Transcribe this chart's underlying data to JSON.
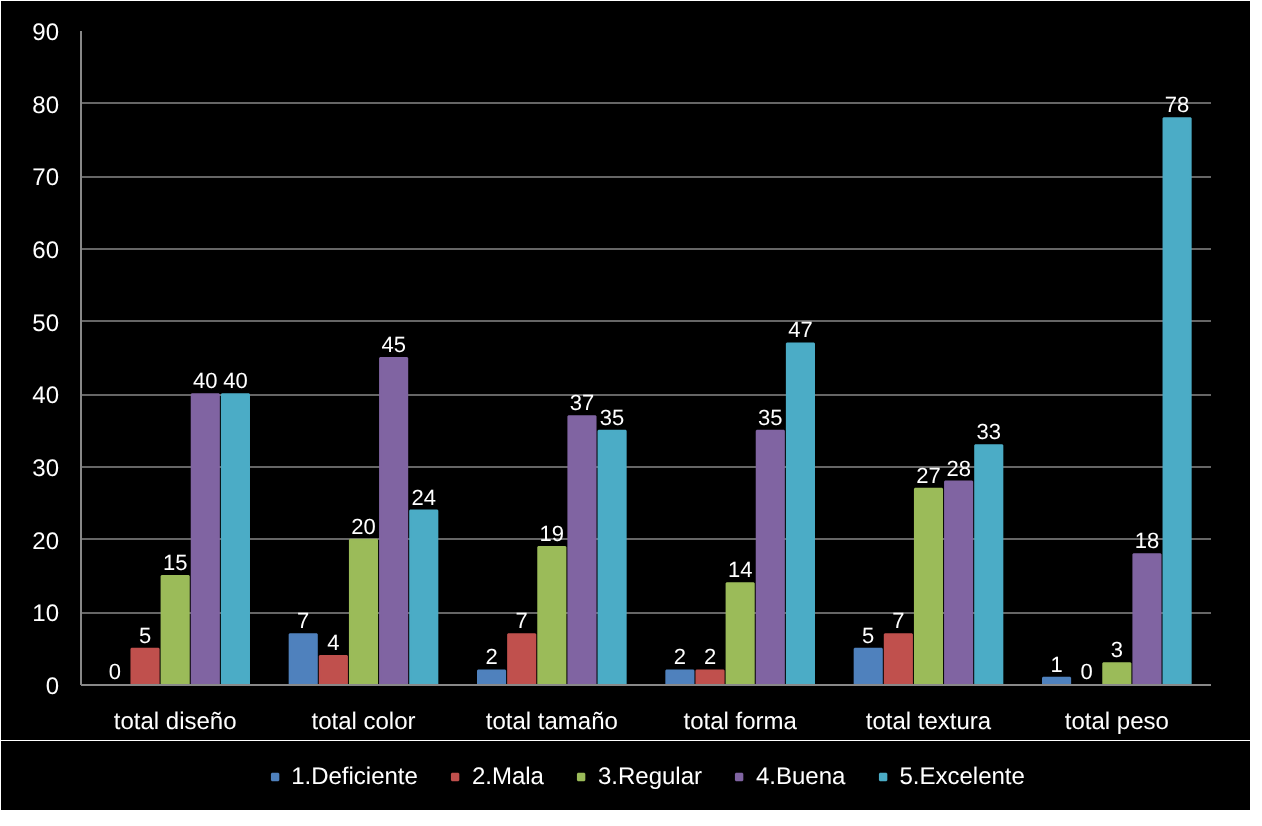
{
  "chart_data": {
    "type": "bar",
    "categories": [
      "total diseño",
      "total color",
      "total tamaño",
      "total forma",
      "total textura",
      "total peso"
    ],
    "series": [
      {
        "name": "1.Deficiente",
        "color": "#4f81bd",
        "values": [
          0,
          7,
          2,
          2,
          5,
          1
        ]
      },
      {
        "name": "2.Mala",
        "color": "#c0504d",
        "values": [
          5,
          4,
          7,
          2,
          7,
          0
        ]
      },
      {
        "name": "3.Regular",
        "color": "#9bbb59",
        "values": [
          15,
          20,
          19,
          14,
          27,
          3
        ]
      },
      {
        "name": "4.Buena",
        "color": "#8064a2",
        "values": [
          40,
          45,
          37,
          35,
          28,
          18
        ]
      },
      {
        "name": "5.Excelente",
        "color": "#4bacc6",
        "values": [
          40,
          24,
          35,
          47,
          33,
          78
        ]
      }
    ],
    "ylim": [
      0,
      90
    ],
    "yticks": [
      0,
      10,
      20,
      30,
      40,
      50,
      60,
      70,
      80,
      90
    ],
    "grid": "y",
    "legend": "bottom",
    "data_labels": true
  }
}
